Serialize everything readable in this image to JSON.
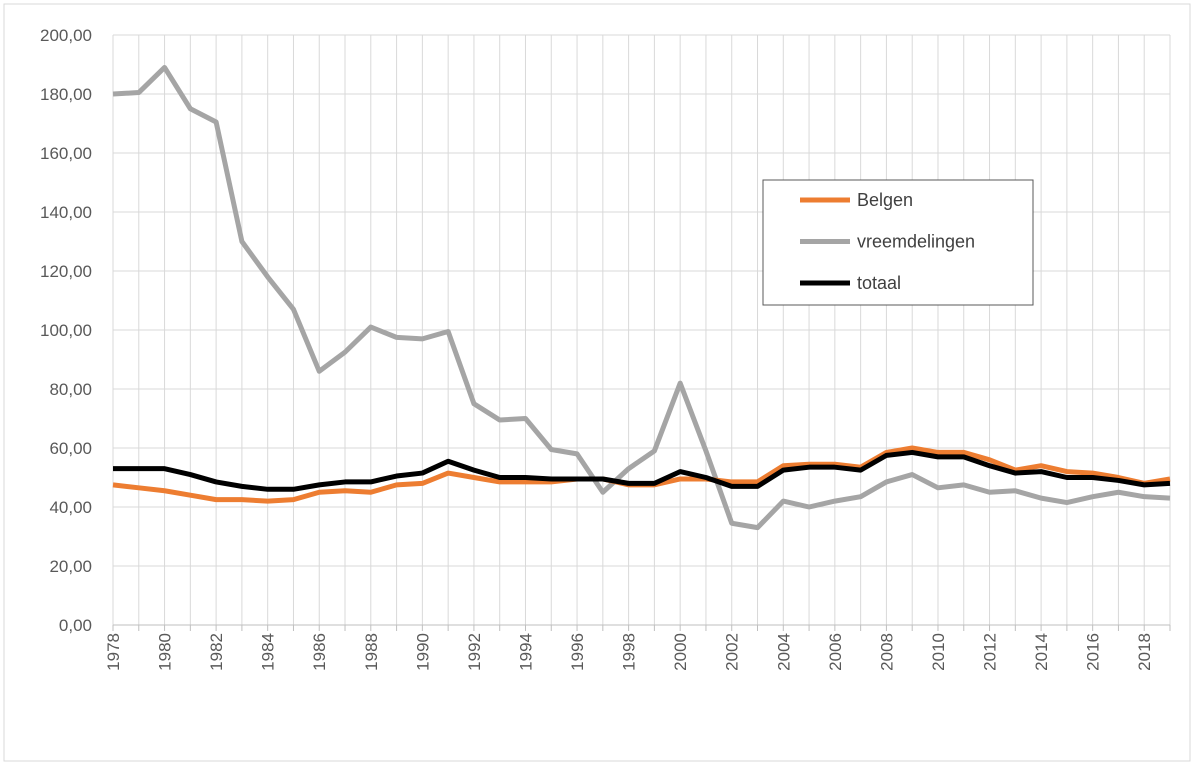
{
  "chart_data": {
    "type": "line",
    "categories": [
      "1978",
      null,
      "1980",
      null,
      "1982",
      null,
      "1984",
      null,
      "1986",
      null,
      "1988",
      null,
      "1990",
      null,
      "1992",
      null,
      "1994",
      null,
      "1996",
      null,
      "1998",
      null,
      "2000",
      null,
      "2002",
      null,
      "2004",
      null,
      "2006",
      null,
      "2008",
      null,
      "2010",
      null,
      "2012",
      null,
      "2014",
      null,
      "2016",
      null,
      "2018",
      null
    ],
    "series": [
      {
        "name": "Belgen",
        "color": "#ed7d31",
        "values": [
          47.5,
          46.5,
          45.5,
          44,
          42.5,
          42.5,
          42,
          42.5,
          45,
          45.5,
          45,
          47.5,
          48,
          51.5,
          50,
          48.5,
          48.5,
          48.5,
          49.5,
          49.5,
          47.5,
          47.5,
          49.5,
          49.5,
          48.5,
          48.5,
          54,
          54.5,
          54.5,
          53.5,
          58.5,
          60,
          58.5,
          58.5,
          56,
          52.5,
          54,
          52,
          51.5,
          50,
          48,
          49.5
        ]
      },
      {
        "name": "vreemdelingen",
        "color": "#a5a5a5",
        "values": [
          180,
          180.5,
          189,
          175,
          170.5,
          130,
          118,
          107,
          86,
          92.5,
          101,
          97.5,
          97,
          99.5,
          75,
          69.5,
          70,
          59.5,
          58,
          45,
          53,
          59,
          82,
          59,
          34.5,
          33,
          42,
          40,
          42,
          43.5,
          48.5,
          51,
          46.5,
          47.5,
          45,
          45.5,
          43,
          41.5,
          43.5,
          45,
          43.5,
          43
        ]
      },
      {
        "name": "totaal",
        "color": "#000000",
        "values": [
          53,
          53,
          53,
          51,
          48.5,
          47,
          46,
          46,
          47.5,
          48.5,
          48.5,
          50.5,
          51.5,
          55.5,
          52.5,
          50,
          50,
          49.5,
          49.5,
          49.5,
          48,
          48,
          52,
          50,
          47,
          47,
          52.5,
          53.5,
          53.5,
          52.5,
          57.5,
          58.5,
          57,
          57,
          54,
          51.5,
          52,
          50,
          50,
          49,
          47.5,
          48
        ]
      }
    ],
    "ylim": [
      0,
      200
    ],
    "yticks": [
      {
        "value": 0,
        "label": "0,00"
      },
      {
        "value": 20,
        "label": "20,00"
      },
      {
        "value": 40,
        "label": "40,00"
      },
      {
        "value": 60,
        "label": "60,00"
      },
      {
        "value": 80,
        "label": "80,00"
      },
      {
        "value": 100,
        "label": "100,00"
      },
      {
        "value": 120,
        "label": "120,00"
      },
      {
        "value": 140,
        "label": "140,00"
      },
      {
        "value": 160,
        "label": "160,00"
      },
      {
        "value": 180,
        "label": "180,00"
      },
      {
        "value": 200,
        "label": "200,00"
      }
    ],
    "grid": true
  }
}
